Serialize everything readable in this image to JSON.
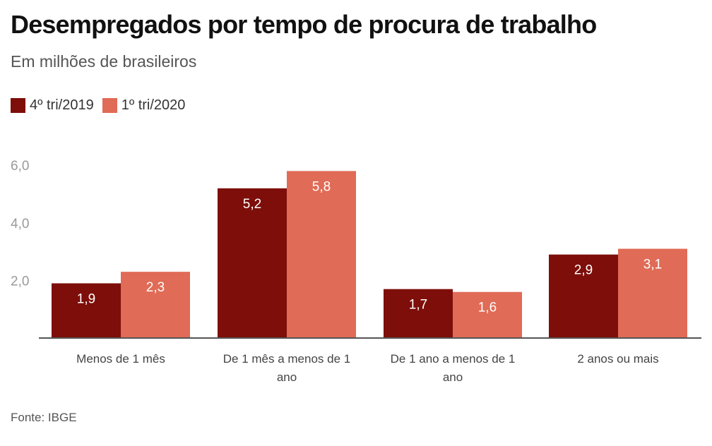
{
  "chart_data": {
    "type": "bar",
    "title": "Desempregados por tempo de procura de trabalho",
    "subtitle": "Em milhões de brasileiros",
    "source": "Fonte: IBGE",
    "xlabel": "",
    "ylabel": "",
    "ylim": [
      0,
      6.0
    ],
    "yticks": [
      2.0,
      4.0,
      6.0
    ],
    "ytick_labels": [
      "2,0",
      "4,0",
      "6,0"
    ],
    "grid": false,
    "legend_position": "top-left",
    "categories": [
      [
        "Menos de 1 mês"
      ],
      [
        "De 1 mês a menos de 1",
        "ano"
      ],
      [
        "De 1 ano a menos de 1",
        "ano"
      ],
      [
        "2 anos ou mais"
      ]
    ],
    "series": [
      {
        "name": "4º tri/2019",
        "color": "#7d0e0a",
        "values": [
          1.9,
          5.2,
          1.7,
          2.9
        ],
        "labels": [
          "1,9",
          "5,2",
          "1,7",
          "2,9"
        ]
      },
      {
        "name": "1º tri/2020",
        "color": "#e06b56",
        "values": [
          2.3,
          5.8,
          1.6,
          3.1
        ],
        "labels": [
          "2,3",
          "5,8",
          "1,6",
          "3,1"
        ]
      }
    ]
  },
  "colors": {
    "axis": "#555555",
    "title": "#111111"
  }
}
